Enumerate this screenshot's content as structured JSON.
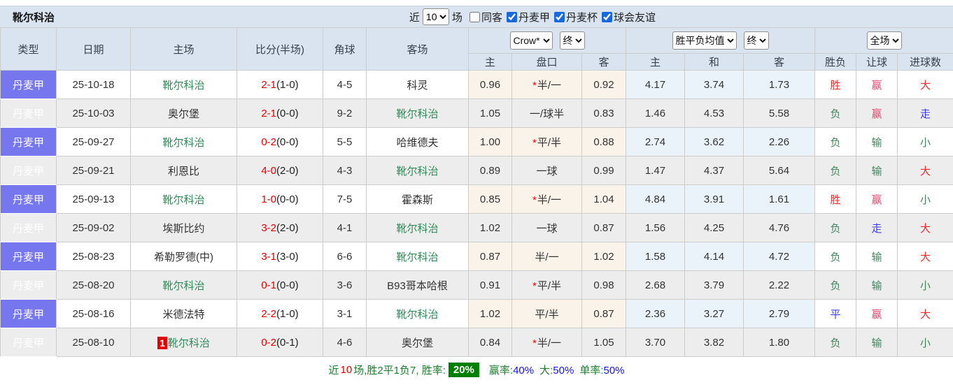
{
  "title_bar": {
    "team": "靴尔科治",
    "recent_label": "近",
    "recent_value": "10",
    "games_label": "场",
    "filters": [
      {
        "label": "同客",
        "checked": false
      },
      {
        "label": "丹麦甲",
        "checked": true
      },
      {
        "label": "丹麦杯",
        "checked": true
      },
      {
        "label": "球会友谊",
        "checked": true
      }
    ]
  },
  "table": {
    "headers": {
      "type": "类型",
      "date": "日期",
      "home": "主场",
      "score": "比分(半场)",
      "corner": "角球",
      "away": "客场",
      "odds_home": "主",
      "odds_line": "盘口",
      "odds_away": "客",
      "avg_home": "主",
      "avg_draw": "和",
      "avg_away": "客",
      "result": "胜负",
      "handicap": "让球",
      "goals": "进球数"
    },
    "selects": {
      "bookmaker": "Crow*",
      "bookmaker_time": "终",
      "average": "胜平负均值",
      "average_time": "终",
      "scope": "全场"
    },
    "rows": [
      {
        "league": "丹麦甲",
        "date": "25-10-18",
        "home": {
          "name": "靴尔科治",
          "tracked": true,
          "badge": ""
        },
        "score_ft": "2-1",
        "score_ht": "(1-0)",
        "corner": "4-5",
        "away": {
          "name": "科灵",
          "tracked": false
        },
        "odds": {
          "home": "0.96",
          "star": true,
          "line": "半/一",
          "away": "0.92"
        },
        "avg": {
          "home": "4.17",
          "draw": "3.74",
          "away": "1.73"
        },
        "result": {
          "text": "胜",
          "color": "red"
        },
        "handicap": {
          "text": "赢",
          "color": "crimson"
        },
        "goals": {
          "text": "大",
          "color": "red"
        }
      },
      {
        "league": "丹麦甲",
        "date": "25-10-03",
        "home": {
          "name": "奥尔堡",
          "tracked": false,
          "badge": ""
        },
        "score_ft": "2-1",
        "score_ht": "(0-0)",
        "corner": "9-2",
        "away": {
          "name": "靴尔科治",
          "tracked": true
        },
        "odds": {
          "home": "1.05",
          "star": false,
          "line": "一/球半",
          "away": "0.83"
        },
        "avg": {
          "home": "1.46",
          "draw": "4.53",
          "away": "5.58"
        },
        "result": {
          "text": "负",
          "color": "green"
        },
        "handicap": {
          "text": "赢",
          "color": "crimson"
        },
        "goals": {
          "text": "走",
          "color": "blue"
        }
      },
      {
        "league": "丹麦甲",
        "date": "25-09-27",
        "home": {
          "name": "靴尔科治",
          "tracked": true,
          "badge": ""
        },
        "score_ft": "0-2",
        "score_ht": "(0-0)",
        "corner": "5-5",
        "away": {
          "name": "哈维德夫",
          "tracked": false
        },
        "odds": {
          "home": "1.00",
          "star": true,
          "line": "平/半",
          "away": "0.88"
        },
        "avg": {
          "home": "2.74",
          "draw": "3.62",
          "away": "2.26"
        },
        "result": {
          "text": "负",
          "color": "green"
        },
        "handicap": {
          "text": "输",
          "color": "green"
        },
        "goals": {
          "text": "小",
          "color": "green"
        }
      },
      {
        "league": "丹麦甲",
        "date": "25-09-21",
        "home": {
          "name": "利恩比",
          "tracked": false,
          "badge": ""
        },
        "score_ft": "4-0",
        "score_ht": "(2-0)",
        "corner": "4-3",
        "away": {
          "name": "靴尔科治",
          "tracked": true
        },
        "odds": {
          "home": "0.89",
          "star": false,
          "line": "一球",
          "away": "0.99"
        },
        "avg": {
          "home": "1.47",
          "draw": "4.37",
          "away": "5.64"
        },
        "result": {
          "text": "负",
          "color": "green"
        },
        "handicap": {
          "text": "输",
          "color": "green"
        },
        "goals": {
          "text": "大",
          "color": "red"
        }
      },
      {
        "league": "丹麦甲",
        "date": "25-09-13",
        "home": {
          "name": "靴尔科治",
          "tracked": true,
          "badge": ""
        },
        "score_ft": "1-0",
        "score_ht": "(0-0)",
        "corner": "7-5",
        "away": {
          "name": "霍森斯",
          "tracked": false
        },
        "odds": {
          "home": "0.85",
          "star": true,
          "line": "半/一",
          "away": "1.04"
        },
        "avg": {
          "home": "4.84",
          "draw": "3.91",
          "away": "1.61"
        },
        "result": {
          "text": "胜",
          "color": "red"
        },
        "handicap": {
          "text": "赢",
          "color": "crimson"
        },
        "goals": {
          "text": "小",
          "color": "green"
        }
      },
      {
        "league": "丹麦甲",
        "date": "25-09-02",
        "home": {
          "name": "埃斯比约",
          "tracked": false,
          "badge": ""
        },
        "score_ft": "3-2",
        "score_ht": "(2-0)",
        "corner": "4-1",
        "away": {
          "name": "靴尔科治",
          "tracked": true
        },
        "odds": {
          "home": "1.02",
          "star": false,
          "line": "一球",
          "away": "0.87"
        },
        "avg": {
          "home": "1.56",
          "draw": "4.25",
          "away": "4.76"
        },
        "result": {
          "text": "负",
          "color": "green"
        },
        "handicap": {
          "text": "走",
          "color": "blue"
        },
        "goals": {
          "text": "大",
          "color": "red"
        }
      },
      {
        "league": "丹麦甲",
        "date": "25-08-23",
        "home": {
          "name": "希勒罗德(中)",
          "tracked": false,
          "badge": ""
        },
        "score_ft": "3-1",
        "score_ht": "(3-0)",
        "corner": "6-6",
        "away": {
          "name": "靴尔科治",
          "tracked": true
        },
        "odds": {
          "home": "0.87",
          "star": false,
          "line": "半/一",
          "away": "1.02"
        },
        "avg": {
          "home": "1.58",
          "draw": "4.14",
          "away": "4.72"
        },
        "result": {
          "text": "负",
          "color": "green"
        },
        "handicap": {
          "text": "输",
          "color": "green"
        },
        "goals": {
          "text": "大",
          "color": "red"
        }
      },
      {
        "league": "丹麦甲",
        "date": "25-08-20",
        "home": {
          "name": "靴尔科治",
          "tracked": true,
          "badge": ""
        },
        "score_ft": "0-1",
        "score_ht": "(0-0)",
        "corner": "3-6",
        "away": {
          "name": "B93哥本哈根",
          "tracked": false
        },
        "odds": {
          "home": "0.91",
          "star": true,
          "line": "平/半",
          "away": "0.98"
        },
        "avg": {
          "home": "2.68",
          "draw": "3.79",
          "away": "2.22"
        },
        "result": {
          "text": "负",
          "color": "green"
        },
        "handicap": {
          "text": "输",
          "color": "green"
        },
        "goals": {
          "text": "小",
          "color": "green"
        }
      },
      {
        "league": "丹麦甲",
        "date": "25-08-16",
        "home": {
          "name": "米德法特",
          "tracked": false,
          "badge": ""
        },
        "score_ft": "2-2",
        "score_ht": "(1-0)",
        "corner": "3-1",
        "away": {
          "name": "靴尔科治",
          "tracked": true
        },
        "odds": {
          "home": "1.02",
          "star": false,
          "line": "平/半",
          "away": "0.87"
        },
        "avg": {
          "home": "2.36",
          "draw": "3.27",
          "away": "2.79"
        },
        "result": {
          "text": "平",
          "color": "blue"
        },
        "handicap": {
          "text": "赢",
          "color": "crimson"
        },
        "goals": {
          "text": "大",
          "color": "red"
        }
      },
      {
        "league": "丹麦甲",
        "date": "25-08-10",
        "home": {
          "name": "靴尔科治",
          "tracked": true,
          "badge": "1"
        },
        "score_ft": "0-2",
        "score_ht": "(0-1)",
        "corner": "4-6",
        "away": {
          "name": "奥尔堡",
          "tracked": false
        },
        "odds": {
          "home": "0.84",
          "star": true,
          "line": "半/一",
          "away": "1.05"
        },
        "avg": {
          "home": "3.70",
          "draw": "3.82",
          "away": "1.80"
        },
        "result": {
          "text": "负",
          "color": "green"
        },
        "handicap": {
          "text": "输",
          "color": "green"
        },
        "goals": {
          "text": "小",
          "color": "green"
        }
      }
    ]
  },
  "footer": {
    "prefix": "近",
    "count": "10",
    "summary": "场,胜2平1负7, 胜率:",
    "win_rate": "20%",
    "segments": [
      {
        "label": "赢率:",
        "value": "40%"
      },
      {
        "label": "大:",
        "value": "50%"
      },
      {
        "label": "单率:",
        "value": "50%"
      }
    ]
  },
  "colors": {
    "win_red": "#ef2b2b",
    "lose_green": "#41855c",
    "draw_blue": "#3b3bf0",
    "handicap_win_crimson": "#e8476f",
    "tracked_team_green": "#2e8b57",
    "score_red": "#e60000",
    "type_cell_bg": "#7677ee",
    "header_bg": "#d9e4f0",
    "odds_cream_bg": "#faf3e9",
    "avg_blue_bg": "#eaf3f9",
    "win_rate_badge_bg": "#008000",
    "footer_green": "#1d7d2c",
    "footer_blue": "#1414e6"
  }
}
